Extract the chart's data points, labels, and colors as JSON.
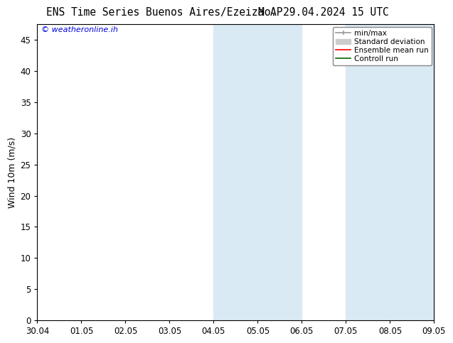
{
  "title_left": "ENS Time Series Buenos Aires/Ezeiza AP",
  "title_right": "Mo. 29.04.2024 15 UTC",
  "ylabel": "Wind 10m (m/s)",
  "watermark": "© weatheronline.ih",
  "watermark_color": "#0000dd",
  "background_color": "#ffffff",
  "plot_bg_color": "#ffffff",
  "shade_color": "#daeaf5",
  "ylim_min": 0,
  "ylim_max": 47.5,
  "yticks": [
    0,
    5,
    10,
    15,
    20,
    25,
    30,
    35,
    40,
    45
  ],
  "xtick_labels": [
    "30.04",
    "01.05",
    "02.05",
    "03.05",
    "04.05",
    "05.05",
    "06.05",
    "07.05",
    "08.05",
    "09.05"
  ],
  "shade_bands": [
    {
      "xstart": 4.0,
      "xend": 4.5
    },
    {
      "xstart": 4.5,
      "xend": 6.0
    },
    {
      "xstart": 7.0,
      "xend": 7.5
    },
    {
      "xstart": 7.5,
      "xend": 9.0
    }
  ],
  "legend_entries": [
    {
      "label": "min/max",
      "color": "#999999",
      "lw": 1.2,
      "style": "minmax"
    },
    {
      "label": "Standard deviation",
      "color": "#cccccc",
      "lw": 5,
      "style": "band"
    },
    {
      "label": "Ensemble mean run",
      "color": "#ff0000",
      "lw": 1.2,
      "style": "line"
    },
    {
      "label": "Controll run",
      "color": "#006600",
      "lw": 1.2,
      "style": "line"
    }
  ],
  "title_fontsize": 10.5,
  "tick_fontsize": 8.5,
  "ylabel_fontsize": 9,
  "watermark_fontsize": 8,
  "legend_fontsize": 7.5
}
